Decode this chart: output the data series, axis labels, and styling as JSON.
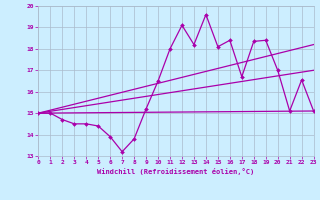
{
  "xlabel": "Windchill (Refroidissement éolien,°C)",
  "background_color": "#cceeff",
  "grid_color": "#aabbcc",
  "line_color": "#aa00aa",
  "xlim": [
    0,
    23
  ],
  "ylim": [
    13,
    20
  ],
  "yticks": [
    13,
    14,
    15,
    16,
    17,
    18,
    19,
    20
  ],
  "xticks": [
    0,
    1,
    2,
    3,
    4,
    5,
    6,
    7,
    8,
    9,
    10,
    11,
    12,
    13,
    14,
    15,
    16,
    17,
    18,
    19,
    20,
    21,
    22,
    23
  ],
  "line1_x": [
    0,
    1,
    2,
    3,
    4,
    5,
    6,
    7,
    8,
    9,
    10,
    11,
    12,
    13,
    14,
    15,
    16,
    17,
    18,
    19,
    20,
    21,
    22,
    23
  ],
  "line1_y": [
    15.0,
    15.0,
    14.7,
    14.5,
    14.5,
    14.4,
    13.9,
    13.2,
    13.8,
    15.2,
    16.5,
    18.0,
    19.1,
    18.2,
    19.6,
    18.1,
    18.4,
    16.7,
    18.35,
    18.4,
    17.0,
    15.1,
    16.55,
    15.1
  ],
  "line2_x": [
    0,
    23
  ],
  "line2_y": [
    15.0,
    15.1
  ],
  "line3_x": [
    0,
    23
  ],
  "line3_y": [
    15.0,
    17.0
  ],
  "line4_x": [
    0,
    23
  ],
  "line4_y": [
    15.0,
    18.2
  ]
}
